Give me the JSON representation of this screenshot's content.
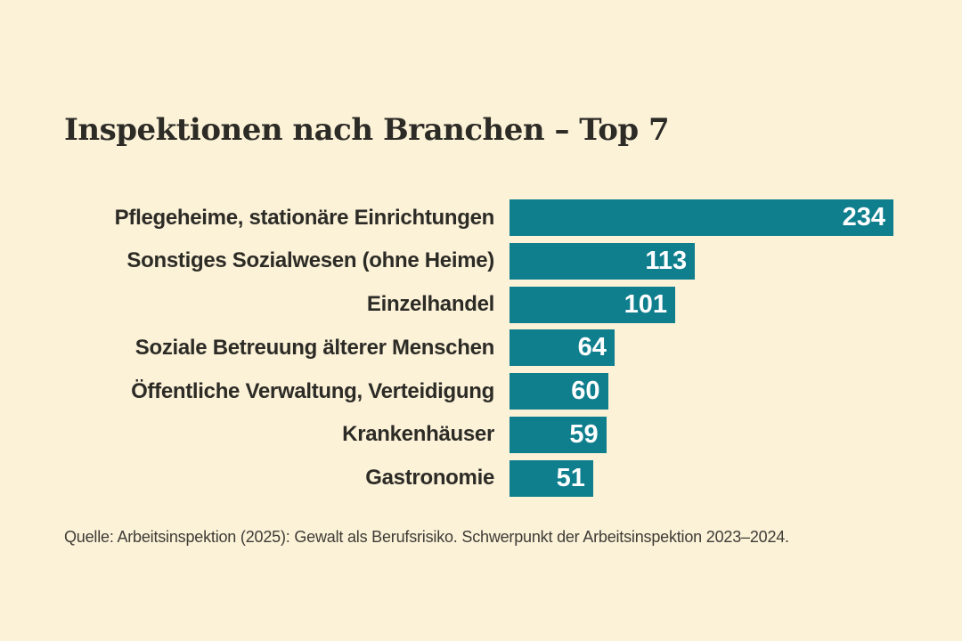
{
  "page": {
    "background_color": "#FBF2D8"
  },
  "colors": {
    "bar_fill": "#0F7E8D",
    "value_text": "#FFFFFF",
    "title_text": "#2D2B26",
    "label_text": "#2D2B26",
    "source_text": "#3F3C36"
  },
  "chart_data": {
    "type": "bar",
    "orientation": "horizontal",
    "title": "Inspektionen nach Branchen – Top 7",
    "categories": [
      "Pflegeheime, stationäre Einrichtungen",
      "Sonstiges Sozialwesen (ohne Heime)",
      "Einzelhandel",
      "Soziale Betreuung älterer Menschen",
      "Öffentliche Verwaltung, Verteidigung",
      "Krankenhäuser",
      "Gastronomie"
    ],
    "values": [
      234,
      113,
      101,
      64,
      60,
      59,
      51
    ],
    "value_labels_position": "inside-right",
    "xlim": [
      0,
      234
    ],
    "grid": false,
    "legend": false,
    "axis_ticks": false,
    "source": "Quelle: Arbeitsinspektion (2025): Gewalt als Berufsrisiko. Schwerpunkt der Arbeitsinspektion 2023–2024."
  }
}
